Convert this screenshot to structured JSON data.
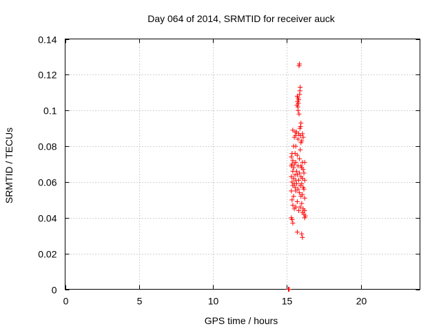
{
  "chart_data": {
    "type": "scatter",
    "title": "Day 064 of 2014, SRMTID for receiver auck",
    "xlabel": "GPS time / hours",
    "ylabel": "SRMTID / TECUs",
    "xlim": [
      0,
      24
    ],
    "ylim": [
      0,
      0.14
    ],
    "xticks": [
      0,
      5,
      10,
      15,
      20
    ],
    "yticks": [
      0,
      0.02,
      0.04,
      0.06,
      0.08,
      0.1,
      0.12,
      0.14
    ],
    "xtick_labels": [
      "0",
      "5",
      "10",
      "15",
      "20"
    ],
    "ytick_labels": [
      "0",
      "0.02",
      "0.04",
      "0.06",
      "0.08",
      "0.1",
      "0.12",
      "0.14"
    ],
    "grid": true,
    "legend": "none",
    "marker_color": "#ff0000",
    "marker": "plus",
    "points": [
      [
        15.1,
        0.0
      ],
      [
        15.12,
        0.0
      ],
      [
        15.15,
        0.0
      ],
      [
        15.85,
        0.126
      ],
      [
        15.82,
        0.125
      ],
      [
        15.9,
        0.113
      ],
      [
        15.88,
        0.111
      ],
      [
        15.86,
        0.109
      ],
      [
        15.7,
        0.108
      ],
      [
        15.75,
        0.107
      ],
      [
        15.8,
        0.106
      ],
      [
        15.72,
        0.105
      ],
      [
        15.78,
        0.104
      ],
      [
        15.68,
        0.103
      ],
      [
        15.74,
        0.102
      ],
      [
        15.76,
        0.1
      ],
      [
        15.82,
        0.098
      ],
      [
        15.95,
        0.093
      ],
      [
        15.92,
        0.091
      ],
      [
        15.88,
        0.09
      ],
      [
        15.4,
        0.089
      ],
      [
        15.55,
        0.088
      ],
      [
        15.65,
        0.088
      ],
      [
        15.8,
        0.087
      ],
      [
        16.05,
        0.087
      ],
      [
        15.6,
        0.086
      ],
      [
        15.9,
        0.086
      ],
      [
        16.1,
        0.085
      ],
      [
        15.5,
        0.085
      ],
      [
        15.75,
        0.084
      ],
      [
        16.0,
        0.083
      ],
      [
        15.95,
        0.082
      ],
      [
        15.45,
        0.08
      ],
      [
        15.6,
        0.08
      ],
      [
        15.9,
        0.078
      ],
      [
        15.35,
        0.076
      ],
      [
        15.55,
        0.076
      ],
      [
        15.7,
        0.075
      ],
      [
        15.3,
        0.074
      ],
      [
        15.85,
        0.073
      ],
      [
        15.4,
        0.072
      ],
      [
        15.6,
        0.071
      ],
      [
        16.05,
        0.071
      ],
      [
        16.2,
        0.071
      ],
      [
        15.35,
        0.07
      ],
      [
        15.5,
        0.07
      ],
      [
        15.75,
        0.069
      ],
      [
        15.95,
        0.069
      ],
      [
        15.3,
        0.069
      ],
      [
        15.45,
        0.068
      ],
      [
        16.0,
        0.068
      ],
      [
        16.1,
        0.067
      ],
      [
        15.4,
        0.066
      ],
      [
        15.65,
        0.066
      ],
      [
        15.85,
        0.065
      ],
      [
        16.15,
        0.065
      ],
      [
        15.55,
        0.064
      ],
      [
        15.7,
        0.064
      ],
      [
        15.3,
        0.063
      ],
      [
        15.95,
        0.063
      ],
      [
        16.05,
        0.062
      ],
      [
        15.45,
        0.062
      ],
      [
        15.6,
        0.061
      ],
      [
        15.8,
        0.061
      ],
      [
        16.2,
        0.061
      ],
      [
        15.35,
        0.06
      ],
      [
        15.5,
        0.059
      ],
      [
        15.65,
        0.059
      ],
      [
        16.0,
        0.059
      ],
      [
        15.4,
        0.058
      ],
      [
        15.9,
        0.058
      ],
      [
        16.1,
        0.057
      ],
      [
        15.55,
        0.057
      ],
      [
        15.75,
        0.056
      ],
      [
        16.15,
        0.056
      ],
      [
        15.3,
        0.055
      ],
      [
        15.6,
        0.055
      ],
      [
        15.85,
        0.054
      ],
      [
        16.05,
        0.053
      ],
      [
        15.45,
        0.052
      ],
      [
        15.95,
        0.052
      ],
      [
        16.2,
        0.051
      ],
      [
        15.35,
        0.05
      ],
      [
        15.7,
        0.049
      ],
      [
        16.0,
        0.048
      ],
      [
        15.4,
        0.047
      ],
      [
        15.6,
        0.046
      ],
      [
        15.9,
        0.046
      ],
      [
        16.1,
        0.045
      ],
      [
        15.5,
        0.045
      ],
      [
        16.2,
        0.044
      ],
      [
        15.8,
        0.044
      ],
      [
        16.05,
        0.043
      ],
      [
        16.15,
        0.042
      ],
      [
        16.25,
        0.041
      ],
      [
        15.3,
        0.04
      ],
      [
        16.2,
        0.04
      ],
      [
        15.35,
        0.039
      ],
      [
        15.4,
        0.037
      ],
      [
        15.7,
        0.032
      ],
      [
        16.0,
        0.031
      ],
      [
        16.05,
        0.029
      ]
    ]
  }
}
